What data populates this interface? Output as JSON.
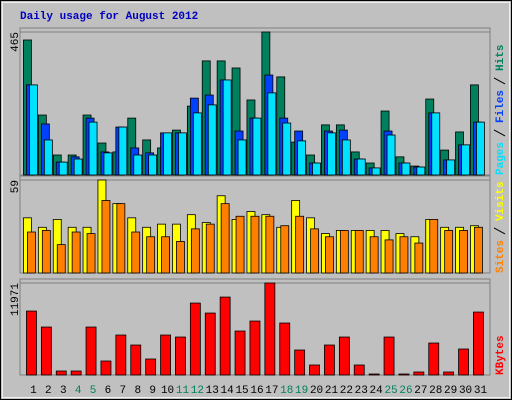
{
  "chart_data": [
    {
      "type": "bar",
      "title": "Daily usage for August 2012",
      "ylim": [
        0,
        465
      ],
      "yticks": [
        465
      ],
      "series": [
        {
          "name": "Hits",
          "color": "#00805c",
          "values": [
            439,
            195,
            65,
            65,
            195,
            104,
            75,
            185,
            114,
            88,
            146,
            224,
            371,
            371,
            348,
            244,
            465,
            319,
            107,
            65,
            163,
            163,
            75,
            39,
            208,
            59,
            29,
            247,
            81,
            140,
            293
          ]
        },
        {
          "name": "Files",
          "color": "#0040ff",
          "values": [
            293,
            166,
            42,
            59,
            185,
            75,
            156,
            88,
            72,
            137,
            137,
            250,
            260,
            309,
            143,
            185,
            325,
            185,
            143,
            39,
            143,
            146,
            52,
            23,
            143,
            39,
            26,
            202,
            49,
            98,
            172
          ]
        },
        {
          "name": "Pages",
          "color": "#00e0ff",
          "values": [
            293,
            114,
            42,
            52,
            172,
            72,
            156,
            65,
            65,
            137,
            137,
            202,
            228,
            309,
            114,
            185,
            267,
            169,
            111,
            39,
            137,
            114,
            52,
            23,
            130,
            39,
            26,
            202,
            49,
            98,
            172
          ]
        }
      ]
    },
    {
      "type": "bar",
      "ylim": [
        0,
        59
      ],
      "yticks": [
        59
      ],
      "series": [
        {
          "name": "Visits",
          "color": "#ffff00",
          "values": [
            35,
            29,
            34,
            29,
            29,
            59,
            44,
            35,
            29,
            31,
            31,
            37,
            32,
            49,
            34,
            39,
            37,
            29,
            46,
            35,
            25,
            27,
            27,
            27,
            27,
            25,
            23,
            34,
            29,
            29,
            30
          ]
        },
        {
          "name": "Sites",
          "color": "#ff8000",
          "values": [
            26,
            27,
            18,
            26,
            25,
            46,
            44,
            26,
            23,
            23,
            20,
            28,
            31,
            44,
            36,
            36,
            36,
            30,
            36,
            28,
            23,
            27,
            27,
            23,
            21,
            23,
            19,
            34,
            27,
            27,
            29
          ]
        }
      ]
    },
    {
      "type": "bar",
      "ylim": [
        0,
        11971
      ],
      "yticks": [
        11971
      ],
      "categories": [
        "1",
        "2",
        "3",
        "4",
        "5",
        "6",
        "7",
        "8",
        "9",
        "10",
        "11",
        "12",
        "13",
        "14",
        "15",
        "16",
        "17",
        "18",
        "19",
        "20",
        "21",
        "22",
        "23",
        "24",
        "25",
        "26",
        "27",
        "28",
        "29",
        "30",
        "31"
      ],
      "category_colors": [
        "#000000",
        "#000000",
        "#000000",
        "#00805c",
        "#00805c",
        "#000000",
        "#000000",
        "#000000",
        "#000000",
        "#000000",
        "#00805c",
        "#00805c",
        "#000000",
        "#000000",
        "#000000",
        "#000000",
        "#000000",
        "#00805c",
        "#00805c",
        "#000000",
        "#000000",
        "#000000",
        "#000000",
        "#000000",
        "#00805c",
        "#00805c",
        "#000000",
        "#000000",
        "#000000",
        "#000000",
        "#000000"
      ],
      "series": [
        {
          "name": "KBytes",
          "color": "#ff0000",
          "values": [
            8320,
            6240,
            520,
            520,
            6240,
            1820,
            5200,
            3900,
            2080,
            5200,
            4940,
            9360,
            8060,
            10140,
            5720,
            7020,
            11971,
            6760,
            3250,
            1300,
            3900,
            4940,
            1300,
            130,
            4940,
            130,
            390,
            4160,
            390,
            3380,
            8190
          ]
        }
      ]
    }
  ]
}
